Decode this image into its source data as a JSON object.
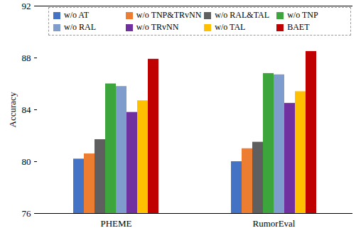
{
  "chart_data": {
    "type": "bar",
    "categories": [
      "PHEME",
      "RumorEval"
    ],
    "y_label": "Accuracy",
    "ylim": [
      76,
      92
    ],
    "yticks": [
      76,
      80,
      84,
      88,
      92
    ],
    "legend": "top",
    "grid": false,
    "series": [
      {
        "name": "w/o AT",
        "color": "#4472c4",
        "values": [
          80.2,
          80.0
        ]
      },
      {
        "name": "w/o TNP&TRvNN",
        "color": "#ed7d31",
        "values": [
          80.6,
          81.0
        ]
      },
      {
        "name": "w/o RAL&TAL",
        "color": "#5f5f5f",
        "values": [
          81.7,
          81.5
        ]
      },
      {
        "name": "w/o TNP",
        "color": "#3ca63c",
        "values": [
          86.0,
          86.8
        ]
      },
      {
        "name": "w/o RAL",
        "color": "#7f9dcc",
        "values": [
          85.8,
          86.7
        ]
      },
      {
        "name": "w/o TRvNN",
        "color": "#7030a0",
        "values": [
          83.8,
          84.5
        ]
      },
      {
        "name": "w/o TAL",
        "color": "#ffc000",
        "values": [
          84.7,
          85.4
        ]
      },
      {
        "name": "BAET",
        "color": "#c00000",
        "values": [
          87.9,
          88.5
        ]
      }
    ]
  }
}
